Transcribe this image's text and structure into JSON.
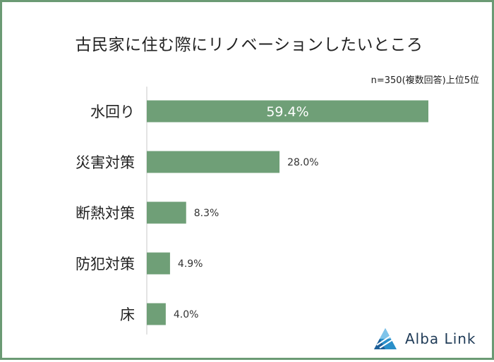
{
  "chart_data": {
    "type": "bar",
    "orientation": "horizontal",
    "title": "古民家に住む際にリノベーションしたいところ",
    "note": "n=350(複数回答)上位5位",
    "categories": [
      "水回り",
      "災害対策",
      "断熱対策",
      "防犯対策",
      "床"
    ],
    "values": [
      59.4,
      28.0,
      8.3,
      4.9,
      4.0
    ],
    "value_labels": [
      "59.4%",
      "28.0%",
      "8.3%",
      "4.9%",
      "4.0%"
    ],
    "xlim": [
      0,
      60
    ],
    "grid": false,
    "bar_color": "#6f9f77"
  },
  "brand": {
    "name": "Alba Link",
    "logo_icon": "triangle-logo-icon",
    "color": "#1f3b57"
  }
}
